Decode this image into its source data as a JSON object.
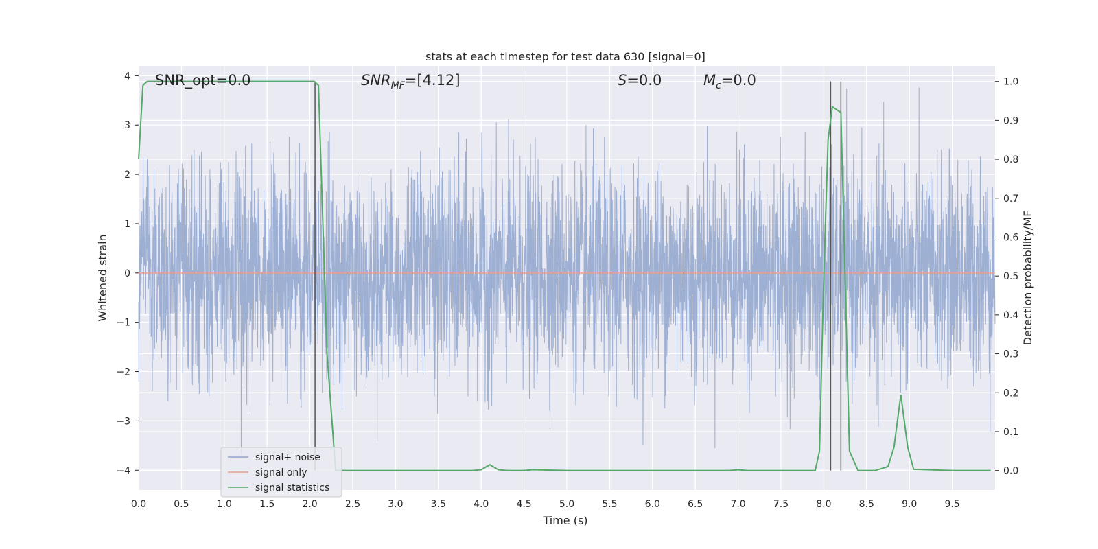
{
  "chart_data": {
    "type": "line",
    "title": "stats at each timestep for test data 630 [signal=0]",
    "xlabel": "Time (s)",
    "ylabel": "Whitened strain",
    "y2label": "Detection probability/MF",
    "xlim": [
      0.0,
      10.0
    ],
    "ylim": [
      -4.4,
      4.2
    ],
    "y2lim": [
      -0.05,
      1.04
    ],
    "x_ticks": [
      "0.0",
      "0.5",
      "1.0",
      "1.5",
      "2.0",
      "2.5",
      "3.0",
      "3.5",
      "4.0",
      "4.5",
      "5.0",
      "5.5",
      "6.0",
      "6.5",
      "7.0",
      "7.5",
      "8.0",
      "8.5",
      "9.0",
      "9.5"
    ],
    "y_ticks": [
      "4",
      "3",
      "2",
      "1",
      "0",
      "−1",
      "−2",
      "−3",
      "−4"
    ],
    "y2_ticks": [
      "1.0",
      "0.9",
      "0.8",
      "0.7",
      "0.6",
      "0.5",
      "0.4",
      "0.3",
      "0.2",
      "0.1",
      "0.0"
    ],
    "grid": true,
    "legend_position": "lower-left",
    "annotations": {
      "snr_opt": "SNR_opt=0.0",
      "snr_mf_name": "SNR",
      "snr_mf_sub": "MF",
      "snr_mf_value": "=[4.12]",
      "s_name": "S",
      "s_value": "=0.0",
      "mc_name": "M",
      "mc_sub": "c",
      "mc_value": "=0.0"
    },
    "series": [
      {
        "name": "signal+ noise",
        "color": "#8fa5cd",
        "axis": "left",
        "style": "dense gaussian noise, envelope approx ±2.6 with peaks near ±4"
      },
      {
        "name": "signal only",
        "color": "#e8a08c",
        "axis": "left",
        "x": [
          0.0,
          10.0
        ],
        "values": [
          0.0,
          0.0
        ]
      },
      {
        "name": "signal statistics",
        "color": "#55a868",
        "axis": "right",
        "x": [
          0.0,
          0.05,
          0.1,
          0.2,
          0.5,
          1.0,
          1.5,
          1.9,
          2.0,
          2.05,
          2.1,
          2.2,
          2.3,
          2.5,
          3.0,
          3.5,
          3.9,
          4.0,
          4.1,
          4.2,
          4.3,
          4.5,
          4.6,
          5.0,
          6.0,
          6.9,
          7.0,
          7.1,
          7.5,
          7.9,
          7.95,
          8.0,
          8.05,
          8.1,
          8.2,
          8.3,
          8.4,
          8.6,
          8.75,
          8.82,
          8.9,
          8.98,
          9.05,
          9.5,
          9.95
        ],
        "values": [
          0.8,
          0.99,
          1.0,
          1.0,
          1.0,
          1.0,
          1.0,
          1.0,
          1.0,
          1.0,
          0.99,
          0.3,
          0.0,
          0.0,
          0.0,
          0.0,
          0.0,
          0.002,
          0.015,
          0.002,
          0.0,
          0.0,
          0.002,
          0.0,
          0.0,
          0.0,
          0.002,
          0.0,
          0.0,
          0.0,
          0.05,
          0.5,
          0.85,
          0.935,
          0.92,
          0.05,
          0.0,
          0.0,
          0.01,
          0.06,
          0.195,
          0.06,
          0.003,
          0.0,
          0.0
        ]
      }
    ],
    "vertical_markers": [
      2.06,
      8.08,
      8.2
    ]
  }
}
